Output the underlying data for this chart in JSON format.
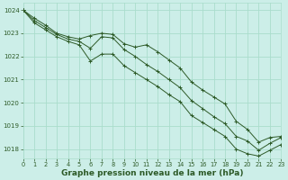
{
  "title": "Graphe pression niveau de la mer (hPa)",
  "bg_color": "#cceee8",
  "grid_color": "#aaddcc",
  "line_color": "#2d5a27",
  "ylim": [
    1017.6,
    1024.3
  ],
  "xlim": [
    0,
    23
  ],
  "yticks": [
    1018,
    1019,
    1020,
    1021,
    1022,
    1023,
    1024
  ],
  "xticks": [
    0,
    1,
    2,
    3,
    4,
    5,
    6,
    7,
    8,
    9,
    10,
    11,
    12,
    13,
    14,
    15,
    16,
    17,
    18,
    19,
    20,
    21,
    22,
    23
  ],
  "series1": [
    1024.0,
    1023.65,
    1023.35,
    1023.0,
    1022.85,
    1022.75,
    1022.9,
    1023.0,
    1022.95,
    1022.55,
    1022.4,
    1022.5,
    1022.2,
    1021.85,
    1021.5,
    1020.9,
    1020.55,
    1020.25,
    1019.95,
    1019.2,
    1018.85,
    1018.3,
    1018.5,
    1018.55
  ],
  "series2": [
    1024.0,
    1023.55,
    1023.25,
    1022.95,
    1022.75,
    1022.65,
    1022.35,
    1022.85,
    1022.8,
    1022.3,
    1022.0,
    1021.65,
    1021.35,
    1021.0,
    1020.65,
    1020.1,
    1019.75,
    1019.4,
    1019.1,
    1018.55,
    1018.35,
    1017.95,
    1018.25,
    1018.5
  ],
  "series3": [
    1024.0,
    1023.45,
    1023.15,
    1022.85,
    1022.65,
    1022.5,
    1021.8,
    1022.1,
    1022.1,
    1021.6,
    1021.3,
    1021.0,
    1020.7,
    1020.35,
    1020.05,
    1019.45,
    1019.15,
    1018.85,
    1018.55,
    1018.0,
    1017.8,
    1017.7,
    1017.95,
    1018.2
  ]
}
